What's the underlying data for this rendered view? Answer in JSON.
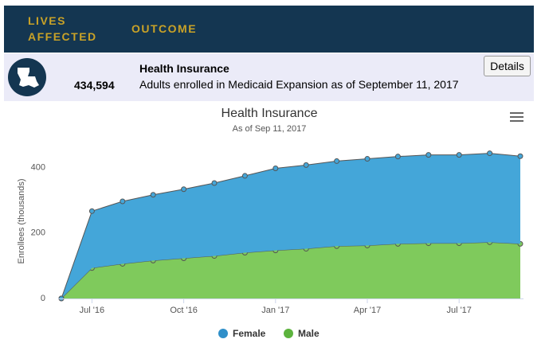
{
  "header": {
    "lives_affected": "LIVES AFFECTED",
    "outcome": "OUTCOME"
  },
  "row": {
    "value": "434,594",
    "title": "Health Insurance",
    "description": "Adults enrolled in Medicaid Expansion as of September 11, 2017",
    "button": "Details"
  },
  "chart_data": {
    "type": "area",
    "stacked": true,
    "title": "Health Insurance",
    "subtitle": "As of Sep 11, 2017",
    "y_label": "Enrollees (thousands)",
    "categories": [
      null,
      "Jul '16",
      null,
      null,
      "Oct '16",
      null,
      null,
      "Jan '17",
      null,
      null,
      "Apr '17",
      null,
      null,
      "Jul '17",
      null,
      null
    ],
    "series": [
      {
        "name": "Female",
        "color": "#44a6d9",
        "legend_color": "#2f8fc9",
        "values": [
          0,
          174,
          191,
          201,
          211,
          223,
          235,
          251,
          256,
          260,
          265,
          267,
          270,
          270,
          272,
          268
        ]
      },
      {
        "name": "Male",
        "color": "#7fca5c",
        "legend_color": "#5cb33d",
        "values": [
          0,
          93,
          106,
          116,
          123,
          130,
          140,
          147,
          152,
          160,
          162,
          167,
          169,
          169,
          172,
          167
        ]
      }
    ],
    "ylim": [
      0,
      460
    ],
    "yticks": [
      0,
      200,
      400
    ],
    "grid": false
  }
}
